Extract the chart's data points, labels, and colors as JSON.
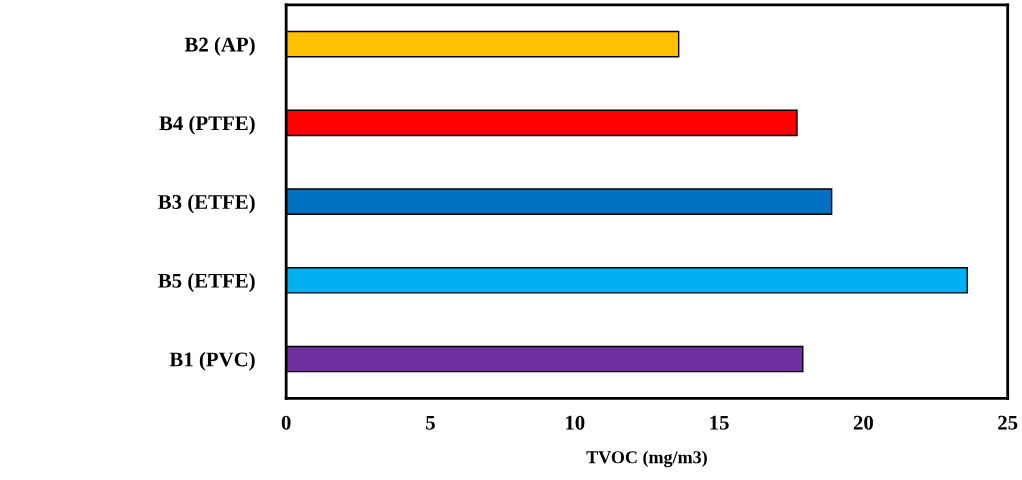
{
  "chart_data": {
    "type": "bar",
    "orientation": "horizontal",
    "xlabel": "TVOC (mg/m3)",
    "categories": [
      "B2 (AP)",
      "B4 (PTFE)",
      "B3 (ETFE)",
      "B5 (ETFE)",
      "B1 (PVC)"
    ],
    "values": [
      13.6,
      17.7,
      18.9,
      23.6,
      17.9
    ],
    "colors": [
      "#ffc000",
      "#ff0000",
      "#0070c0",
      "#00b0f0",
      "#7030a0"
    ],
    "xlim": [
      0,
      25
    ],
    "xticks": [
      0,
      5,
      10,
      15,
      20,
      25
    ],
    "grid": false,
    "legend": false
  }
}
